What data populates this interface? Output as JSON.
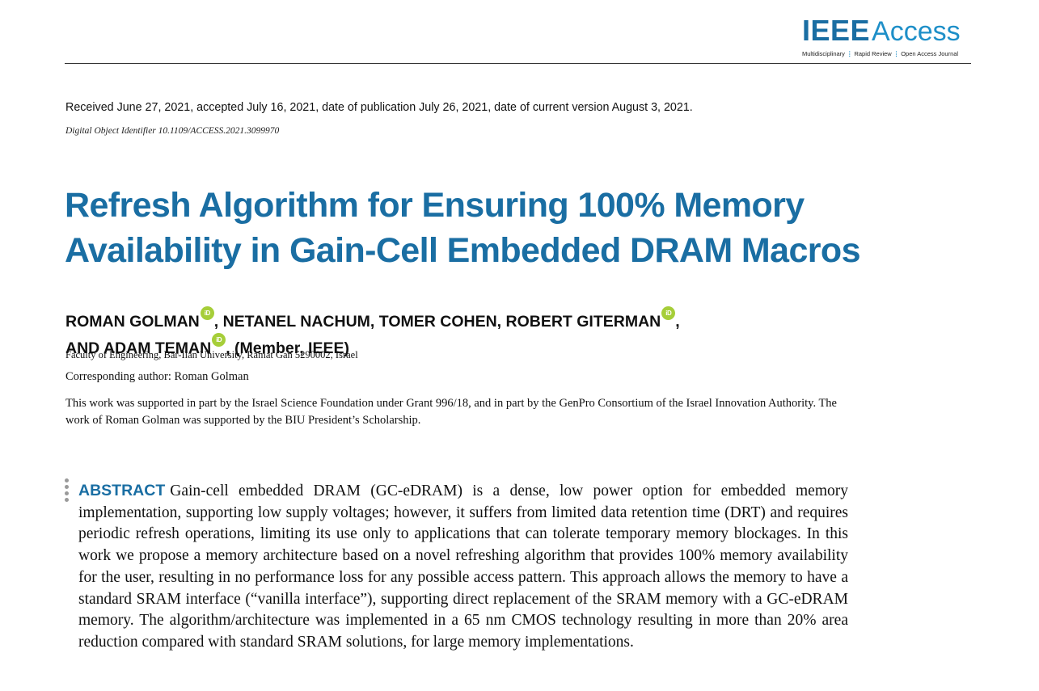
{
  "journal": {
    "logo_ieee": "IEEE",
    "logo_access": "Access",
    "tagline": [
      "Multidisciplinary",
      "Rapid Review",
      "Open Access Journal"
    ],
    "brand_color": "#1a6ea3"
  },
  "header": {
    "received": "Received June 27, 2021, accepted July 16, 2021, date of publication July 26, 2021, date of current version August 3, 2021.",
    "doi": "Digital Object Identifier 10.1109/ACCESS.2021.3099970"
  },
  "paper": {
    "title": "Refresh Algorithm for Ensuring 100% Memory Availability in Gain-Cell Embedded DRAM Macros",
    "authors": {
      "a1": "ROMAN GOLMAN",
      "a2": ", NETANEL NACHUM, TOMER COHEN, ROBERT GITERMAN",
      "a2_end": ",",
      "a3": "AND ADAM TEMAN",
      "a3_end": ", (Member, IEEE)",
      "orcid_badge": "iD"
    },
    "affiliation": "Faculty of Engineering, Bar-Ilan University, Ramat Gan 5290002, Israel",
    "corresponding": "Corresponding author: Roman Golman",
    "funding": "This work was supported in part by the Israel Science Foundation under Grant 996/18, and in part by the GenPro Consortium of the Israel Innovation Authority. The work of Roman Golman was supported by the BIU President’s Scholarship.",
    "abstract_label": "ABSTRACT",
    "abstract": "Gain-cell embedded DRAM (GC-eDRAM) is a dense, low power option for embedded memory implementation, supporting low supply voltages; however, it suffers from limited data retention time (DRT) and requires periodic refresh operations, limiting its use only to applications that can tolerate temporary memory blockages. In this work we propose a memory architecture based on a novel refreshing algorithm that provides 100% memory availability for the user, resulting in no performance loss for any possible access pattern. This approach allows the memory to have a standard SRAM interface (“vanilla interface”), supporting direct replacement of the SRAM memory with a GC-eDRAM memory. The algorithm/architecture was implemented in a 65 nm CMOS technology resulting in more than 20% area reduction compared with standard SRAM solutions, for large memory implementations."
  }
}
